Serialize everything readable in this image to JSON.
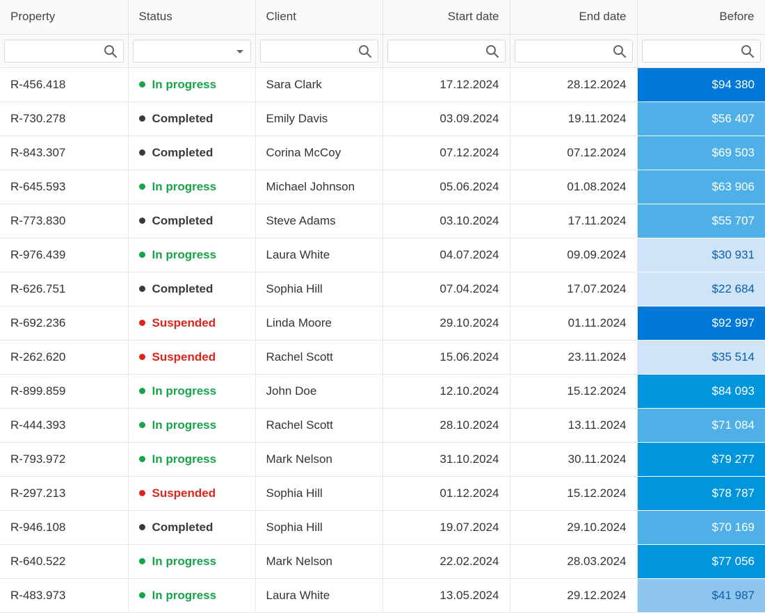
{
  "columns": [
    {
      "label": "Property"
    },
    {
      "label": "Status"
    },
    {
      "label": "Client"
    },
    {
      "label": "Start date"
    },
    {
      "label": "End date"
    },
    {
      "label": "Before"
    }
  ],
  "filters": {
    "property": {
      "value": "",
      "placeholder": ""
    },
    "status": {
      "value": ""
    },
    "client": {
      "value": "",
      "placeholder": ""
    },
    "start": {
      "value": "",
      "placeholder": ""
    },
    "end": {
      "value": "",
      "placeholder": ""
    },
    "before": {
      "value": "",
      "placeholder": ""
    }
  },
  "status_colors": {
    "In progress": "#16a34a",
    "Completed": "#3a3a3a",
    "Suspended": "#e0241b"
  },
  "value_tiers": {
    "level_1": {
      "bg": "#cfe4f7",
      "fg": "#0b5fad"
    },
    "level_2": {
      "bg": "#8ec6ef",
      "fg": "#0b5fad"
    },
    "level_3": {
      "bg": "#4fb0e8",
      "fg": "#ffffff"
    },
    "level_4": {
      "bg": "#0095dd",
      "fg": "#ffffff"
    },
    "level_5": {
      "bg": "#0078d7",
      "fg": "#ffffff"
    }
  },
  "rows": [
    {
      "property": "R-456.418",
      "status": "In progress",
      "client": "Sara Clark",
      "start": "17.12.2024",
      "end": "28.12.2024",
      "before": "$94 380",
      "tier": "level_5"
    },
    {
      "property": "R-730.278",
      "status": "Completed",
      "client": "Emily Davis",
      "start": "03.09.2024",
      "end": "19.11.2024",
      "before": "$56 407",
      "tier": "level_3"
    },
    {
      "property": "R-843.307",
      "status": "Completed",
      "client": "Corina McCoy",
      "start": "07.12.2024",
      "end": "07.12.2024",
      "before": "$69 503",
      "tier": "level_3"
    },
    {
      "property": "R-645.593",
      "status": "In progress",
      "client": "Michael Johnson",
      "start": "05.06.2024",
      "end": "01.08.2024",
      "before": "$63 906",
      "tier": "level_3"
    },
    {
      "property": "R-773.830",
      "status": "Completed",
      "client": "Steve Adams",
      "start": "03.10.2024",
      "end": "17.11.2024",
      "before": "$55 707",
      "tier": "level_3"
    },
    {
      "property": "R-976.439",
      "status": "In progress",
      "client": "Laura White",
      "start": "04.07.2024",
      "end": "09.09.2024",
      "before": "$30 931",
      "tier": "level_1"
    },
    {
      "property": "R-626.751",
      "status": "Completed",
      "client": "Sophia Hill",
      "start": "07.04.2024",
      "end": "17.07.2024",
      "before": "$22 684",
      "tier": "level_1"
    },
    {
      "property": "R-692.236",
      "status": "Suspended",
      "client": "Linda Moore",
      "start": "29.10.2024",
      "end": "01.11.2024",
      "before": "$92 997",
      "tier": "level_5"
    },
    {
      "property": "R-262.620",
      "status": "Suspended",
      "client": "Rachel Scott",
      "start": "15.06.2024",
      "end": "23.11.2024",
      "before": "$35 514",
      "tier": "level_1"
    },
    {
      "property": "R-899.859",
      "status": "In progress",
      "client": "John Doe",
      "start": "12.10.2024",
      "end": "15.12.2024",
      "before": "$84 093",
      "tier": "level_4"
    },
    {
      "property": "R-444.393",
      "status": "In progress",
      "client": "Rachel Scott",
      "start": "28.10.2024",
      "end": "13.11.2024",
      "before": "$71 084",
      "tier": "level_3"
    },
    {
      "property": "R-793.972",
      "status": "In progress",
      "client": "Mark Nelson",
      "start": "31.10.2024",
      "end": "30.11.2024",
      "before": "$79 277",
      "tier": "level_4"
    },
    {
      "property": "R-297.213",
      "status": "Suspended",
      "client": "Sophia Hill",
      "start": "01.12.2024",
      "end": "15.12.2024",
      "before": "$78 787",
      "tier": "level_4"
    },
    {
      "property": "R-946.108",
      "status": "Completed",
      "client": "Sophia Hill",
      "start": "19.07.2024",
      "end": "29.10.2024",
      "before": "$70 169",
      "tier": "level_3"
    },
    {
      "property": "R-640.522",
      "status": "In progress",
      "client": "Mark Nelson",
      "start": "22.02.2024",
      "end": "28.03.2024",
      "before": "$77 056",
      "tier": "level_4"
    },
    {
      "property": "R-483.973",
      "status": "In progress",
      "client": "Laura White",
      "start": "13.05.2024",
      "end": "29.12.2024",
      "before": "$41 987",
      "tier": "level_2"
    }
  ]
}
